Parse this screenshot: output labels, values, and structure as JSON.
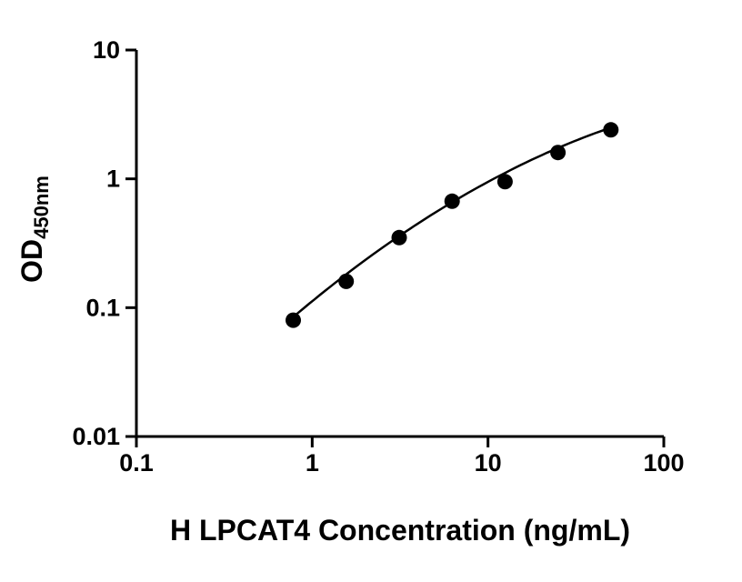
{
  "page": {
    "background": "#ffffff"
  },
  "chart_data": {
    "type": "scatter",
    "title": "",
    "xlabel": "H LPCAT4 Concentration (ng/mL)",
    "ylabel_main": "OD",
    "ylabel_sub": "450nm",
    "x_scale": "log10",
    "y_scale": "log10",
    "xlim": [
      0.1,
      100
    ],
    "ylim": [
      0.01,
      10
    ],
    "grid": false,
    "legend": "none",
    "x_ticks": [
      {
        "value": 0.1,
        "label": "0.1"
      },
      {
        "value": 1,
        "label": "1"
      },
      {
        "value": 10,
        "label": "10"
      },
      {
        "value": 100,
        "label": "100"
      }
    ],
    "y_ticks": [
      {
        "value": 0.01,
        "label": "0.01"
      },
      {
        "value": 0.1,
        "label": "0.1"
      },
      {
        "value": 1,
        "label": "1"
      },
      {
        "value": 10,
        "label": "10"
      }
    ],
    "points": [
      {
        "x": 0.78,
        "y": 0.08
      },
      {
        "x": 1.56,
        "y": 0.16
      },
      {
        "x": 3.125,
        "y": 0.35
      },
      {
        "x": 6.25,
        "y": 0.67
      },
      {
        "x": 12.5,
        "y": 0.95
      },
      {
        "x": 25,
        "y": 1.6
      },
      {
        "x": 50,
        "y": 2.4
      }
    ],
    "fit_curve": {
      "type": "quadratic_loglog",
      "coeffs": {
        "a": -0.95,
        "b": 1.117,
        "c": -0.1904
      },
      "x_start": 0.78,
      "x_end": 50
    },
    "marker": {
      "shape": "circle",
      "radius": 8.5,
      "color": "#000000"
    },
    "line_color": "#000000",
    "axis_color": "#000000"
  }
}
